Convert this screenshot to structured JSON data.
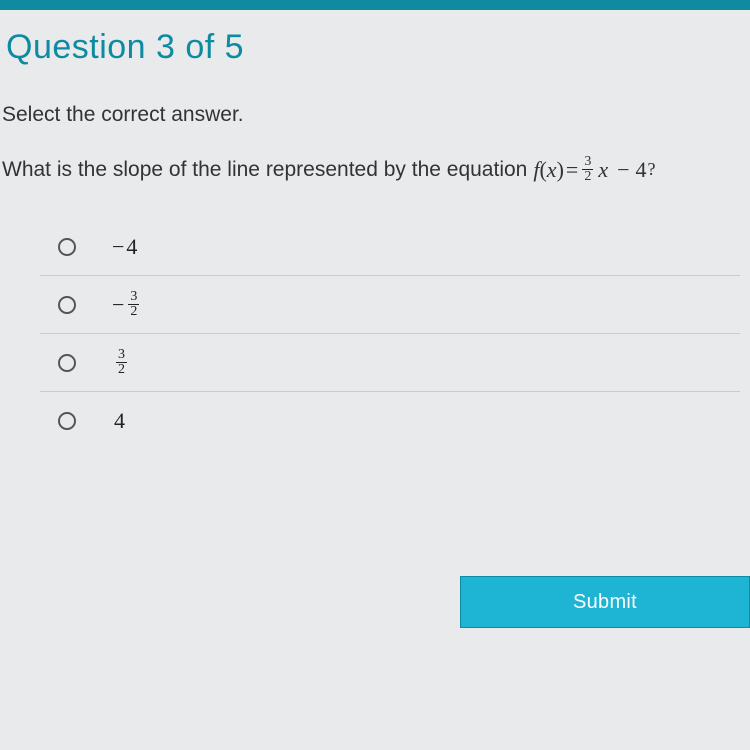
{
  "header": {
    "title": "Question 3 of 5"
  },
  "instruction": "Select the correct answer.",
  "question": {
    "prefix": "What is the slope of the line represented by the equation ",
    "eq_f": "f",
    "eq_open": "(",
    "eq_var": "x",
    "eq_close": ")",
    "eq_eq": "=",
    "eq_frac_num": "3",
    "eq_frac_den": "2",
    "eq_var2": "x",
    "eq_minus": "−",
    "eq_const": "4",
    "eq_q": "?"
  },
  "options": [
    {
      "display": "plain",
      "neg": "−",
      "value": "4"
    },
    {
      "display": "frac",
      "neg": "−",
      "num": "3",
      "den": "2"
    },
    {
      "display": "frac",
      "neg": "",
      "num": "3",
      "den": "2"
    },
    {
      "display": "plain",
      "neg": "",
      "value": "4"
    }
  ],
  "submit_label": "Submit",
  "colors": {
    "accent": "#0e8aa1",
    "button": "#1eb4d4",
    "bg": "#e8eaeb",
    "divider": "#c9cccd",
    "text": "#333333"
  }
}
